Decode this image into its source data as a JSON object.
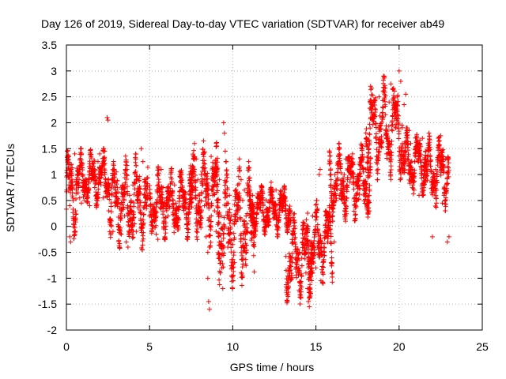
{
  "chart_data": {
    "type": "scatter",
    "title": "Day 126 of 2019, Sidereal Day-to-day VTEC variation (SDTVAR) for receiver ab49",
    "xlabel": "GPS time / hours",
    "ylabel": "SDTVAR / TECUs",
    "xlim": [
      0,
      25
    ],
    "ylim": [
      -2,
      3.5
    ],
    "xticks": [
      "0",
      "5",
      "10",
      "15",
      "20",
      "25"
    ],
    "yticks": [
      "-2",
      "-1.5",
      "-1",
      "-0.5",
      "0",
      "0.5",
      "1",
      "1.5",
      "2",
      "2.5",
      "3",
      "3.5"
    ],
    "grid": true,
    "marker": "+",
    "series": [
      {
        "name": "SDTVAR",
        "color": "#ff0000",
        "points": [
          [
            0.05,
            1.45
          ],
          [
            0.1,
            1.3
          ],
          [
            0.15,
            0.95
          ],
          [
            0.15,
            0.7
          ],
          [
            0.2,
            0.4
          ],
          [
            0.2,
            -0.2
          ],
          [
            0.25,
            -0.3
          ],
          [
            0.3,
            1.05
          ],
          [
            0.35,
            0.8
          ],
          [
            0.4,
            0.5
          ],
          [
            0.5,
            1.4
          ],
          [
            0.55,
            0.3
          ],
          [
            0.6,
            0.9
          ],
          [
            0.7,
            0.65
          ],
          [
            0.8,
            0.55
          ],
          [
            0.9,
            0.45
          ],
          [
            1.0,
            0.7
          ],
          [
            1.1,
            0.5
          ],
          [
            1.2,
            0.8
          ],
          [
            1.3,
            0.65
          ],
          [
            1.4,
            0.4
          ],
          [
            1.5,
            0.9
          ],
          [
            1.6,
            1.1
          ],
          [
            1.7,
            0.75
          ],
          [
            1.8,
            0.6
          ],
          [
            1.9,
            1.25
          ],
          [
            2.0,
            1.4
          ],
          [
            2.1,
            0.95
          ],
          [
            2.2,
            0.55
          ],
          [
            2.3,
            1.45
          ],
          [
            2.4,
            0.8
          ],
          [
            2.45,
            2.1
          ],
          [
            2.5,
            2.05
          ],
          [
            2.55,
            0.3
          ],
          [
            2.6,
            0.1
          ],
          [
            2.7,
            0.0
          ],
          [
            2.8,
            -0.1
          ],
          [
            2.9,
            1.0
          ],
          [
            3.0,
            1.05
          ],
          [
            3.1,
            0.45
          ],
          [
            3.2,
            0.35
          ],
          [
            3.3,
            -0.15
          ],
          [
            3.5,
            0.2
          ],
          [
            3.6,
            -0.3
          ],
          [
            3.7,
            -0.4
          ],
          [
            3.8,
            0.6
          ],
          [
            3.9,
            0.3
          ],
          [
            4.0,
            0.8
          ],
          [
            4.1,
            0.05
          ],
          [
            4.2,
            -0.1
          ],
          [
            4.3,
            0.45
          ],
          [
            4.4,
            0.65
          ],
          [
            4.5,
            1.5
          ],
          [
            4.6,
            1.25
          ],
          [
            4.7,
            0.9
          ],
          [
            4.8,
            0.4
          ],
          [
            4.9,
            0.55
          ],
          [
            5.0,
            0.2
          ],
          [
            5.2,
            0.0
          ],
          [
            5.4,
            -0.15
          ],
          [
            5.5,
            -0.25
          ],
          [
            5.6,
            0.55
          ],
          [
            5.7,
            1.1
          ],
          [
            5.8,
            0.75
          ],
          [
            5.9,
            0.45
          ],
          [
            6.0,
            0.35
          ],
          [
            6.1,
            0.2
          ],
          [
            6.3,
            0.6
          ],
          [
            6.5,
            0.8
          ],
          [
            6.7,
            0.35
          ],
          [
            6.9,
            0.7
          ],
          [
            7.1,
            0.5
          ],
          [
            7.3,
            0.25
          ],
          [
            7.5,
            0.7
          ],
          [
            7.6,
            1.15
          ],
          [
            7.7,
            1.6
          ],
          [
            7.8,
            1.3
          ],
          [
            7.9,
            0.9
          ],
          [
            8.0,
            0.6
          ],
          [
            8.1,
            1.0
          ],
          [
            8.2,
            0.8
          ],
          [
            8.3,
            0.4
          ],
          [
            8.4,
            -0.2
          ],
          [
            8.5,
            -0.5
          ],
          [
            8.5,
            -1.0
          ],
          [
            8.55,
            -1.45
          ],
          [
            8.6,
            -1.6
          ],
          [
            8.7,
            1.35
          ],
          [
            8.8,
            0.6
          ],
          [
            8.9,
            0.3
          ],
          [
            9.0,
            -0.1
          ],
          [
            9.1,
            0.5
          ],
          [
            9.2,
            0.9
          ],
          [
            9.3,
            0.2
          ],
          [
            9.35,
            -0.8
          ],
          [
            9.4,
            -1.2
          ],
          [
            9.45,
            2.0
          ],
          [
            9.5,
            1.8
          ],
          [
            9.55,
            1.45
          ],
          [
            9.6,
            0.4
          ],
          [
            9.7,
            -0.4
          ],
          [
            9.8,
            0.6
          ],
          [
            9.9,
            0.2
          ],
          [
            10.0,
            -0.35
          ],
          [
            10.1,
            -0.7
          ],
          [
            10.2,
            0.3
          ],
          [
            10.3,
            0.8
          ],
          [
            10.4,
            1.3
          ],
          [
            10.5,
            0.9
          ],
          [
            10.6,
            0.5
          ],
          [
            10.7,
            0.7
          ],
          [
            10.8,
            0.2
          ],
          [
            10.9,
            -0.1
          ],
          [
            11.0,
            0.4
          ],
          [
            11.2,
            0.6
          ],
          [
            11.4,
            0.05
          ],
          [
            11.6,
            0.45
          ],
          [
            11.8,
            0.3
          ],
          [
            12.0,
            0.5
          ],
          [
            12.2,
            0.15
          ],
          [
            12.4,
            0.55
          ],
          [
            12.6,
            0.7
          ],
          [
            12.8,
            0.5
          ],
          [
            13.0,
            0.3
          ],
          [
            13.2,
            0.15
          ],
          [
            13.4,
            0.0
          ],
          [
            13.6,
            -0.3
          ],
          [
            13.8,
            -0.8
          ],
          [
            14.0,
            -0.5
          ],
          [
            14.2,
            -0.3
          ],
          [
            14.3,
            0.05
          ],
          [
            14.4,
            -0.9
          ],
          [
            14.5,
            -1.2
          ],
          [
            14.55,
            -1.45
          ],
          [
            14.6,
            -1.55
          ],
          [
            14.7,
            -0.3
          ],
          [
            14.8,
            0.2
          ],
          [
            14.9,
            -0.5
          ],
          [
            15.0,
            -0.8
          ],
          [
            15.1,
            -0.4
          ],
          [
            15.2,
            1.0
          ],
          [
            15.25,
            1.1
          ],
          [
            15.3,
            -1.05
          ],
          [
            15.4,
            -0.9
          ],
          [
            15.5,
            -0.5
          ],
          [
            15.6,
            -0.2
          ],
          [
            15.7,
            0.15
          ],
          [
            15.8,
            0.4
          ],
          [
            15.9,
            0.8
          ],
          [
            16.0,
            0.2
          ],
          [
            16.1,
            -0.3
          ],
          [
            16.2,
            0.5
          ],
          [
            16.3,
            0.9
          ],
          [
            16.4,
            0.6
          ],
          [
            16.5,
            1.2
          ],
          [
            16.6,
            0.8
          ],
          [
            16.7,
            1.0
          ],
          [
            16.8,
            1.3
          ],
          [
            16.9,
            0.9
          ],
          [
            17.0,
            1.05
          ],
          [
            17.2,
            1.4
          ],
          [
            17.4,
            0.85
          ],
          [
            17.6,
            1.2
          ],
          [
            17.8,
            1.55
          ],
          [
            18.0,
            1.1
          ],
          [
            18.2,
            1.6
          ],
          [
            18.3,
            2.1
          ],
          [
            18.4,
            2.3
          ],
          [
            18.6,
            1.7
          ],
          [
            18.8,
            2.5
          ],
          [
            19.0,
            2.2
          ],
          [
            19.2,
            1.85
          ],
          [
            19.4,
            2.4
          ],
          [
            19.5,
            2.75
          ],
          [
            19.6,
            2.65
          ],
          [
            19.7,
            2.3
          ],
          [
            19.8,
            1.9
          ],
          [
            19.9,
            2.5
          ],
          [
            20.0,
            3.0
          ],
          [
            20.1,
            2.8
          ],
          [
            20.2,
            1.6
          ],
          [
            20.3,
            2.35
          ],
          [
            20.4,
            2.55
          ],
          [
            20.5,
            1.3
          ],
          [
            20.6,
            1.85
          ],
          [
            20.7,
            1.6
          ],
          [
            20.8,
            1.1
          ],
          [
            20.9,
            0.7
          ],
          [
            21.0,
            1.35
          ],
          [
            21.2,
            0.6
          ],
          [
            21.4,
            1.7
          ],
          [
            21.6,
            1.45
          ],
          [
            21.8,
            1.2
          ],
          [
            22.0,
            -0.2
          ],
          [
            22.2,
            1.1
          ],
          [
            22.4,
            1.55
          ],
          [
            22.5,
            1.75
          ],
          [
            22.6,
            0.45
          ],
          [
            22.7,
            0.6
          ],
          [
            22.8,
            1.3
          ],
          [
            22.9,
            -0.3
          ],
          [
            23.0,
            -0.2
          ]
        ],
        "segments": [
          {
            "x": [
              0.0,
              0.6
            ],
            "y": [
              -0.35,
              1.6
            ]
          },
          {
            "x": [
              0.6,
              2.6
            ],
            "y": [
              0.35,
              1.5
            ]
          },
          {
            "x": [
              2.6,
              4.9
            ],
            "y": [
              -0.45,
              1.4
            ]
          },
          {
            "x": [
              5.0,
              7.6
            ],
            "y": [
              -0.25,
              1.15
            ]
          },
          {
            "x": [
              7.4,
              9.2
            ],
            "y": [
              -0.4,
              1.65
            ]
          },
          {
            "x": [
              9.0,
              11.3
            ],
            "y": [
              -1.2,
              1.25
            ]
          },
          {
            "x": [
              11.0,
              13.5
            ],
            "y": [
              -0.2,
              0.85
            ]
          },
          {
            "x": [
              13.2,
              14.8
            ],
            "y": [
              -1.5,
              0.3
            ]
          },
          {
            "x": [
              14.5,
              16.0
            ],
            "y": [
              -1.1,
              0.5
            ]
          },
          {
            "x": [
              15.8,
              18.3
            ],
            "y": [
              0.1,
              1.6
            ]
          },
          {
            "x": [
              18.0,
              20.2
            ],
            "y": [
              0.9,
              2.9
            ]
          },
          {
            "x": [
              20.2,
              21.6
            ],
            "y": [
              0.6,
              1.9
            ]
          },
          {
            "x": [
              21.5,
              23.0
            ],
            "y": [
              0.3,
              1.8
            ]
          }
        ]
      }
    ]
  }
}
